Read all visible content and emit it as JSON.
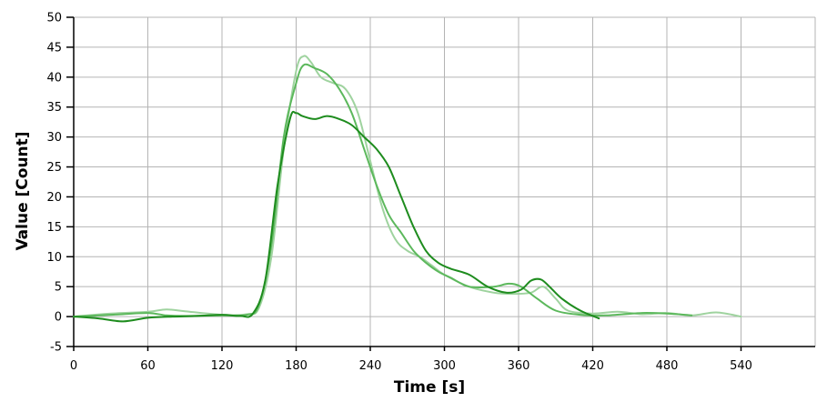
{
  "chart_data": {
    "type": "line",
    "xlabel": "Time [s]",
    "ylabel": "Value [Count]",
    "xlim": [
      0,
      600
    ],
    "ylim": [
      -5,
      50
    ],
    "xticks": [
      0,
      60,
      120,
      180,
      240,
      300,
      360,
      420,
      480,
      540
    ],
    "yticks": [
      -5,
      0,
      5,
      10,
      15,
      20,
      25,
      30,
      35,
      40,
      45,
      50
    ],
    "grid": true,
    "series": [
      {
        "color": "#9fd39f",
        "x": [
          0,
          30,
          60,
          75,
          90,
          120,
          140,
          150,
          160,
          170,
          180,
          186,
          192,
          200,
          210,
          220,
          230,
          240,
          250,
          260,
          270,
          280,
          290,
          300,
          320,
          340,
          355,
          370,
          380,
          390,
          400,
          420,
          440,
          460,
          480,
          500,
          520,
          540
        ],
        "y": [
          0,
          0.5,
          0.8,
          1.2,
          0.9,
          0.3,
          0.4,
          1.5,
          10,
          28,
          41,
          43.5,
          42.5,
          40,
          39,
          38,
          34,
          26,
          18,
          13,
          11,
          10,
          8.5,
          7,
          5,
          4,
          3.8,
          4,
          5,
          3,
          1,
          0.5,
          0.8,
          0.4,
          0.6,
          0.2,
          0.7,
          0
        ]
      },
      {
        "color": "#5cb85c",
        "x": [
          0,
          30,
          60,
          75,
          90,
          120,
          140,
          150,
          160,
          170,
          180,
          186,
          195,
          205,
          215,
          225,
          235,
          245,
          255,
          265,
          275,
          285,
          295,
          305,
          320,
          340,
          352,
          362,
          375,
          390,
          410,
          430,
          460,
          480,
          500
        ],
        "y": [
          0,
          0.3,
          0.6,
          0.2,
          0.1,
          0.2,
          0.3,
          2,
          12,
          30,
          39,
          42,
          41.5,
          40.5,
          38,
          34,
          28,
          22,
          17,
          14,
          11,
          9,
          7.5,
          6.5,
          5,
          5,
          5.5,
          5,
          3,
          1,
          0.3,
          0.2,
          0.6,
          0.5,
          0.2
        ]
      },
      {
        "color": "#1e8c1e",
        "x": [
          0,
          20,
          40,
          60,
          80,
          100,
          120,
          135,
          145,
          155,
          165,
          175,
          180,
          185,
          195,
          205,
          215,
          225,
          235,
          245,
          255,
          265,
          275,
          285,
          295,
          305,
          320,
          335,
          350,
          362,
          370,
          378,
          385,
          395,
          410,
          425
        ],
        "y": [
          0,
          -0.3,
          -0.8,
          -0.2,
          0,
          0.1,
          0.3,
          0.1,
          0.5,
          6,
          22,
          33,
          34,
          33.5,
          33,
          33.5,
          33,
          32,
          30,
          28,
          25,
          20,
          15,
          11,
          9,
          8,
          7,
          5,
          4,
          4.5,
          6,
          6.2,
          5,
          3,
          1,
          -0.3
        ]
      }
    ]
  }
}
